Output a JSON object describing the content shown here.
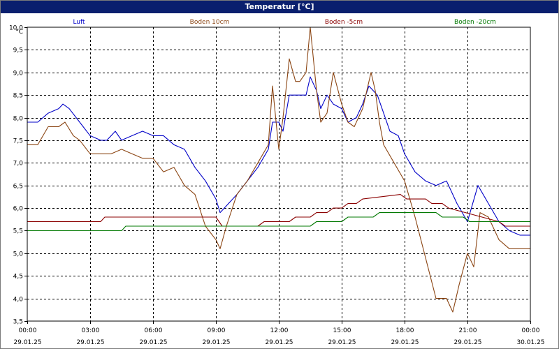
{
  "window": {
    "title": "Temperatur [°C]"
  },
  "chart_data": {
    "type": "line",
    "title": "Temperatur [°C]",
    "ylabel": "°C",
    "ylim": [
      3.5,
      10.0
    ],
    "ytick_step": 0.5,
    "grid": true,
    "legend_position": "top",
    "x_ticks": [
      {
        "time": "00:00",
        "date": "29.01.25"
      },
      {
        "time": "03:00",
        "date": "29.01.25"
      },
      {
        "time": "06:00",
        "date": "29.01.25"
      },
      {
        "time": "09:00",
        "date": "29.01.25"
      },
      {
        "time": "12:00",
        "date": "29.01.25"
      },
      {
        "time": "15:00",
        "date": "29.01.25"
      },
      {
        "time": "18:00",
        "date": "29.01.25"
      },
      {
        "time": "21:00",
        "date": "29.01.25"
      },
      {
        "time": "00:00",
        "date": "30.01.25"
      }
    ],
    "x_unit": "hours since 29.01.25 00:00",
    "xlim": [
      0,
      24
    ],
    "series": [
      {
        "name": "Luft",
        "color": "#0000c8",
        "x": [
          0,
          0.5,
          1,
          1.5,
          1.7,
          2,
          2.5,
          3,
          3.5,
          3.8,
          4.2,
          4.5,
          5,
          5.5,
          6,
          6.5,
          7,
          7.5,
          8,
          8.5,
          9,
          9.2,
          9.6,
          10,
          10.5,
          11,
          11.5,
          11.7,
          12,
          12.2,
          12.5,
          13,
          13.3,
          13.5,
          13.8,
          14,
          14.3,
          14.6,
          15,
          15.3,
          15.7,
          16,
          16.3,
          16.7,
          17,
          17.3,
          17.7,
          18,
          18.5,
          19,
          19.5,
          20,
          20.5,
          21,
          21.5,
          22,
          22.5,
          23,
          23.5,
          24
        ],
        "y": [
          7.9,
          7.9,
          8.1,
          8.2,
          8.3,
          8.2,
          7.9,
          7.6,
          7.5,
          7.5,
          7.7,
          7.5,
          7.6,
          7.7,
          7.6,
          7.6,
          7.4,
          7.3,
          6.9,
          6.6,
          6.2,
          5.9,
          6.1,
          6.3,
          6.6,
          6.9,
          7.3,
          7.9,
          7.9,
          7.7,
          8.5,
          8.5,
          8.5,
          8.9,
          8.6,
          8.2,
          8.5,
          8.3,
          8.2,
          7.9,
          8.0,
          8.3,
          8.7,
          8.5,
          8.1,
          7.7,
          7.6,
          7.2,
          6.8,
          6.6,
          6.5,
          6.6,
          6.1,
          5.7,
          6.5,
          6.1,
          5.7,
          5.5,
          5.4,
          5.4
        ]
      },
      {
        "name": "Boden 10cm",
        "color": "#8b4513",
        "x": [
          0,
          0.5,
          1,
          1.5,
          1.8,
          2.2,
          2.5,
          3,
          3.5,
          4,
          4.5,
          5,
          5.5,
          6,
          6.5,
          7,
          7.5,
          8,
          8.5,
          9,
          9.2,
          9.5,
          10,
          10.5,
          11,
          11.5,
          11.7,
          12,
          12.2,
          12.5,
          12.8,
          13,
          13.3,
          13.5,
          13.8,
          14,
          14.3,
          14.6,
          15,
          15.3,
          15.6,
          16,
          16.4,
          16.6,
          16.8,
          17,
          17.5,
          18,
          18.5,
          19,
          19.5,
          20,
          20.3,
          20.6,
          21,
          21.3,
          21.6,
          22,
          22.5,
          23,
          24
        ],
        "y": [
          7.4,
          7.4,
          7.8,
          7.8,
          7.9,
          7.6,
          7.5,
          7.2,
          7.2,
          7.2,
          7.3,
          7.2,
          7.1,
          7.1,
          6.8,
          6.9,
          6.5,
          6.3,
          5.6,
          5.3,
          5.1,
          5.6,
          6.3,
          6.6,
          7.0,
          7.4,
          8.7,
          7.3,
          8.0,
          9.3,
          8.8,
          8.8,
          9.0,
          10.0,
          8.6,
          7.9,
          8.1,
          9.0,
          8.3,
          7.9,
          7.8,
          8.2,
          9.0,
          8.6,
          7.9,
          7.4,
          7.0,
          6.6,
          5.8,
          4.9,
          4.0,
          4.0,
          3.7,
          4.3,
          5.0,
          4.7,
          5.9,
          5.8,
          5.3,
          5.1,
          5.1
        ]
      },
      {
        "name": "Boden -5cm",
        "color": "#8b0000",
        "x": [
          0,
          3.5,
          3.7,
          9,
          9.3,
          11,
          11.3,
          12.5,
          12.8,
          13.5,
          13.8,
          14.3,
          14.6,
          15,
          15.3,
          15.7,
          16,
          17.8,
          18.1,
          19,
          19.3,
          19.8,
          20.1,
          22.5,
          22.8,
          24
        ],
        "y": [
          5.7,
          5.7,
          5.8,
          5.8,
          5.6,
          5.6,
          5.7,
          5.7,
          5.8,
          5.8,
          5.9,
          5.9,
          6.0,
          6.0,
          6.1,
          6.1,
          6.2,
          6.3,
          6.2,
          6.2,
          6.1,
          6.1,
          6.0,
          5.7,
          5.6,
          5.6
        ]
      },
      {
        "name": "Boden -20cm",
        "color": "#007800",
        "x": [
          0,
          4.5,
          4.7,
          13.5,
          13.8,
          15,
          15.3,
          16.5,
          16.8,
          19.5,
          19.8,
          20.8,
          21.1,
          24
        ],
        "y": [
          5.5,
          5.5,
          5.6,
          5.6,
          5.7,
          5.7,
          5.8,
          5.8,
          5.9,
          5.9,
          5.8,
          5.8,
          5.7,
          5.7
        ]
      }
    ]
  }
}
